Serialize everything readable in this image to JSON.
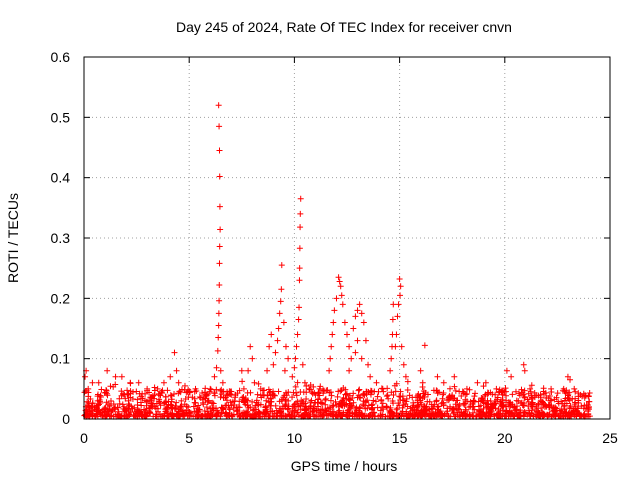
{
  "chart_data": {
    "type": "scatter",
    "title": "Day 245 of 2024, Rate Of TEC Index for receiver cnvn",
    "xlabel": "GPS time / hours",
    "ylabel": "ROTI / TECUs",
    "xlim": [
      0,
      25
    ],
    "ylim": [
      0,
      0.6
    ],
    "xticks": [
      "0",
      "5",
      "10",
      "15",
      "20",
      "25"
    ],
    "yticks": [
      "0",
      "0.1",
      "0.2",
      "0.3",
      "0.4",
      "0.5",
      "0.6"
    ],
    "grid": true,
    "marker": "plus",
    "color": "#ff0000",
    "series": [
      {
        "name": "ROTI",
        "points": [
          [
            6.4,
            0.52
          ],
          [
            6.42,
            0.485
          ],
          [
            6.44,
            0.445
          ],
          [
            6.45,
            0.402
          ],
          [
            6.46,
            0.352
          ],
          [
            6.47,
            0.314
          ],
          [
            6.45,
            0.286
          ],
          [
            6.44,
            0.258
          ],
          [
            6.43,
            0.222
          ],
          [
            6.42,
            0.196
          ],
          [
            6.41,
            0.175
          ],
          [
            6.4,
            0.155
          ],
          [
            6.38,
            0.135
          ],
          [
            6.36,
            0.113
          ],
          [
            6.3,
            0.085
          ],
          [
            6.2,
            0.07
          ],
          [
            6.5,
            0.08
          ],
          [
            6.6,
            0.06
          ],
          [
            6.0,
            0.05
          ],
          [
            6.8,
            0.045
          ],
          [
            10.3,
            0.365
          ],
          [
            10.28,
            0.34
          ],
          [
            10.27,
            0.318
          ],
          [
            10.26,
            0.283
          ],
          [
            10.25,
            0.25
          ],
          [
            10.24,
            0.23
          ],
          [
            10.22,
            0.185
          ],
          [
            10.2,
            0.165
          ],
          [
            10.15,
            0.14
          ],
          [
            10.1,
            0.12
          ],
          [
            10.05,
            0.1
          ],
          [
            10.0,
            0.085
          ],
          [
            9.9,
            0.07
          ],
          [
            10.4,
            0.09
          ],
          [
            10.5,
            0.06
          ],
          [
            9.4,
            0.255
          ],
          [
            9.38,
            0.215
          ],
          [
            9.35,
            0.195
          ],
          [
            9.3,
            0.175
          ],
          [
            9.25,
            0.15
          ],
          [
            9.2,
            0.13
          ],
          [
            9.1,
            0.11
          ],
          [
            9.0,
            0.09
          ],
          [
            9.5,
            0.16
          ],
          [
            9.6,
            0.12
          ],
          [
            9.7,
            0.1
          ],
          [
            9.55,
            0.08
          ],
          [
            8.8,
            0.12
          ],
          [
            8.9,
            0.14
          ],
          [
            8.7,
            0.08
          ],
          [
            7.9,
            0.12
          ],
          [
            8.0,
            0.1
          ],
          [
            7.8,
            0.08
          ],
          [
            8.1,
            0.06
          ],
          [
            7.5,
            0.08
          ],
          [
            7.6,
            0.05
          ],
          [
            7.2,
            0.04
          ],
          [
            12.1,
            0.235
          ],
          [
            12.15,
            0.228
          ],
          [
            12.2,
            0.22
          ],
          [
            12.25,
            0.205
          ],
          [
            12.3,
            0.19
          ],
          [
            12.0,
            0.2
          ],
          [
            11.9,
            0.18
          ],
          [
            11.85,
            0.16
          ],
          [
            11.8,
            0.14
          ],
          [
            11.75,
            0.12
          ],
          [
            11.7,
            0.1
          ],
          [
            11.65,
            0.08
          ],
          [
            12.4,
            0.16
          ],
          [
            12.5,
            0.14
          ],
          [
            12.6,
            0.12
          ],
          [
            12.7,
            0.1
          ],
          [
            12.8,
            0.15
          ],
          [
            12.9,
            0.17
          ],
          [
            13.0,
            0.18
          ],
          [
            13.1,
            0.19
          ],
          [
            13.2,
            0.175
          ],
          [
            13.3,
            0.16
          ],
          [
            13.4,
            0.13
          ],
          [
            13.0,
            0.13
          ],
          [
            12.9,
            0.11
          ],
          [
            13.2,
            0.1
          ],
          [
            12.6,
            0.08
          ],
          [
            13.5,
            0.09
          ],
          [
            13.6,
            0.07
          ],
          [
            15.0,
            0.232
          ],
          [
            15.05,
            0.22
          ],
          [
            15.02,
            0.205
          ],
          [
            14.95,
            0.19
          ],
          [
            14.9,
            0.17
          ],
          [
            14.85,
            0.14
          ],
          [
            14.8,
            0.12
          ],
          [
            14.7,
            0.19
          ],
          [
            14.68,
            0.165
          ],
          [
            14.66,
            0.14
          ],
          [
            14.64,
            0.12
          ],
          [
            14.6,
            0.1
          ],
          [
            14.55,
            0.08
          ],
          [
            15.1,
            0.12
          ],
          [
            15.2,
            0.09
          ],
          [
            15.3,
            0.07
          ],
          [
            16.2,
            0.122
          ],
          [
            16.0,
            0.08
          ],
          [
            16.1,
            0.06
          ],
          [
            4.3,
            0.11
          ],
          [
            4.1,
            0.07
          ],
          [
            4.4,
            0.08
          ],
          [
            4.5,
            0.06
          ],
          [
            3.8,
            0.06
          ],
          [
            3.5,
            0.05
          ],
          [
            3.0,
            0.05
          ],
          [
            2.6,
            0.06
          ],
          [
            2.2,
            0.06
          ],
          [
            1.8,
            0.07
          ],
          [
            1.5,
            0.07
          ],
          [
            1.1,
            0.08
          ],
          [
            0.7,
            0.06
          ],
          [
            0.4,
            0.06
          ],
          [
            0.1,
            0.08
          ],
          [
            0.05,
            0.07
          ],
          [
            0.2,
            0.05
          ],
          [
            5.3,
            0.05
          ],
          [
            5.8,
            0.04
          ],
          [
            5.0,
            0.045
          ],
          [
            4.8,
            0.055
          ],
          [
            16.8,
            0.07
          ],
          [
            17.1,
            0.06
          ],
          [
            17.6,
            0.07
          ],
          [
            18.2,
            0.05
          ],
          [
            18.7,
            0.06
          ],
          [
            19.1,
            0.06
          ],
          [
            19.6,
            0.05
          ],
          [
            20.1,
            0.08
          ],
          [
            20.3,
            0.07
          ],
          [
            20.9,
            0.09
          ],
          [
            20.95,
            0.08
          ],
          [
            21.2,
            0.05
          ],
          [
            21.7,
            0.04
          ],
          [
            22.2,
            0.05
          ],
          [
            22.8,
            0.05
          ],
          [
            23.0,
            0.07
          ],
          [
            23.1,
            0.065
          ],
          [
            23.3,
            0.05
          ],
          [
            23.6,
            0.04
          ],
          [
            23.8,
            0.035
          ],
          [
            24.0,
            0.02
          ],
          [
            13.9,
            0.06
          ],
          [
            14.2,
            0.05
          ],
          [
            11.2,
            0.05
          ],
          [
            11.0,
            0.04
          ],
          [
            10.7,
            0.05
          ],
          [
            8.4,
            0.05
          ],
          [
            8.5,
            0.04
          ],
          [
            7.0,
            0.04
          ]
        ]
      }
    ]
  }
}
